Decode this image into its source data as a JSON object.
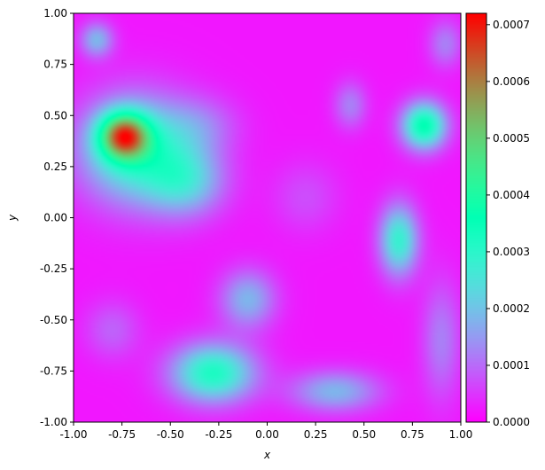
{
  "chart_data": {
    "type": "heatmap",
    "title": "",
    "xlabel": "x",
    "ylabel": "y",
    "xlim": [
      -1.0,
      1.0
    ],
    "ylim": [
      -1.0,
      1.0
    ],
    "xticks": [
      "-1.00",
      "-0.75",
      "-0.50",
      "-0.25",
      "0.00",
      "0.25",
      "0.50",
      "0.75",
      "1.00"
    ],
    "yticks": [
      "-1.00",
      "-0.75",
      "-0.50",
      "-0.25",
      "0.00",
      "0.25",
      "0.50",
      "0.75",
      "1.00"
    ],
    "colormap": "rainbow",
    "colorbar": {
      "min": 0.0,
      "max": 0.00072,
      "ticks": [
        "0.0000",
        "0.0001",
        "0.0002",
        "0.0003",
        "0.0004",
        "0.0005",
        "0.0006",
        "0.0007"
      ]
    },
    "grid": false,
    "background_level": 2e-05,
    "blobs": [
      {
        "x": -0.74,
        "y": 0.4,
        "sx": 0.09,
        "sy": 0.08,
        "value": 0.00045
      },
      {
        "x": -0.68,
        "y": 0.33,
        "sx": 0.2,
        "sy": 0.18,
        "value": 0.00028
      },
      {
        "x": -0.42,
        "y": 0.18,
        "sx": 0.14,
        "sy": 0.12,
        "value": 0.00018
      },
      {
        "x": -0.35,
        "y": 0.45,
        "sx": 0.14,
        "sy": 0.1,
        "value": 8e-05
      },
      {
        "x": -0.88,
        "y": 0.87,
        "sx": 0.06,
        "sy": 0.06,
        "value": 0.00016
      },
      {
        "x": 0.81,
        "y": 0.45,
        "sx": 0.08,
        "sy": 0.08,
        "value": 0.00034
      },
      {
        "x": 0.68,
        "y": -0.11,
        "sx": 0.07,
        "sy": 0.12,
        "value": 0.00026
      },
      {
        "x": -0.28,
        "y": -0.76,
        "sx": 0.15,
        "sy": 0.1,
        "value": 0.0003
      },
      {
        "x": -0.1,
        "y": -0.4,
        "sx": 0.1,
        "sy": 0.1,
        "value": 0.00016
      },
      {
        "x": 0.35,
        "y": -0.85,
        "sx": 0.16,
        "sy": 0.07,
        "value": 0.00016
      },
      {
        "x": 0.43,
        "y": 0.55,
        "sx": 0.06,
        "sy": 0.08,
        "value": 0.0001
      },
      {
        "x": -0.8,
        "y": -0.55,
        "sx": 0.1,
        "sy": 0.1,
        "value": 7e-05
      },
      {
        "x": 0.9,
        "y": -0.6,
        "sx": 0.07,
        "sy": 0.2,
        "value": 0.0001
      },
      {
        "x": 0.92,
        "y": 0.85,
        "sx": 0.06,
        "sy": 0.08,
        "value": 0.0001
      },
      {
        "x": 0.2,
        "y": 0.1,
        "sx": 0.12,
        "sy": 0.12,
        "value": 5e-05
      }
    ]
  }
}
